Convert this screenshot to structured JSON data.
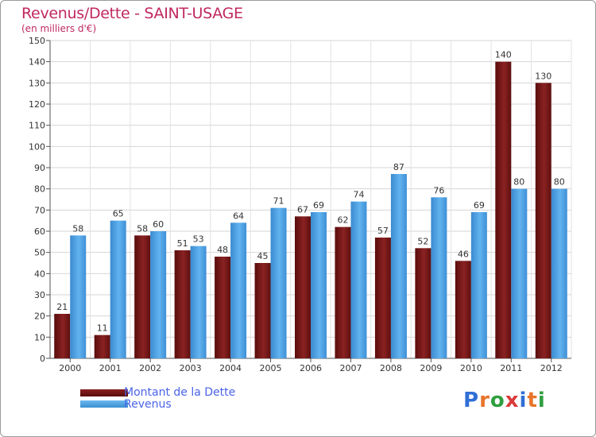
{
  "header": {
    "title": "Revenus/Dette - SAINT-USAGE",
    "subtitle": "(en milliers d'€)"
  },
  "legend": {
    "debt": "Montant de la Dette",
    "revenue": "Revenus"
  },
  "logo": {
    "text": "Proxiti",
    "letters": [
      "P",
      "r",
      "o",
      "x",
      "i",
      "t",
      "i"
    ]
  },
  "colors": {
    "debt": "#6e1414",
    "revenue": "#4aa3e6",
    "title": "#c02860",
    "legend_text": "#4a63e6",
    "logo_letters": [
      "#2f6fd6",
      "#e8742a",
      "#2f9f3f",
      "#d93a3a",
      "#2f6fd6",
      "#e8742a",
      "#2f9f3f"
    ]
  },
  "chart_data": {
    "type": "bar",
    "title": "Revenus/Dette - SAINT-USAGE",
    "subtitle": "(en milliers d'€)",
    "categories": [
      "2000",
      "2001",
      "2002",
      "2003",
      "2004",
      "2005",
      "2006",
      "2007",
      "2008",
      "2009",
      "2010",
      "2011",
      "2012"
    ],
    "series": [
      {
        "name": "Montant de la Dette",
        "values": [
          21,
          11,
          58,
          51,
          48,
          45,
          67,
          62,
          57,
          52,
          46,
          140,
          130
        ]
      },
      {
        "name": "Revenus",
        "values": [
          58,
          65,
          60,
          53,
          64,
          71,
          69,
          74,
          87,
          76,
          69,
          80,
          80
        ]
      }
    ],
    "ylim": [
      0,
      150
    ],
    "yticks": [
      0,
      10,
      20,
      30,
      40,
      50,
      60,
      70,
      80,
      90,
      100,
      110,
      120,
      130,
      140,
      150
    ],
    "grid": true,
    "legend_position": "bottom-left"
  }
}
